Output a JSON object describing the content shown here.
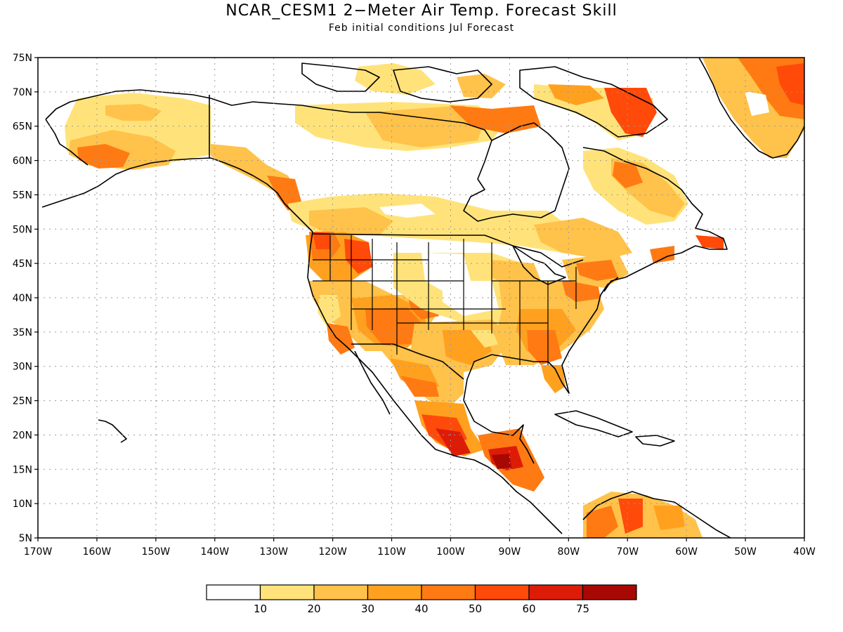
{
  "title": "NCAR_CESM1 2−Meter Air Temp. Forecast Skill",
  "subtitle": "Feb initial conditions  Jul Forecast",
  "map": {
    "lon_range": [
      -170,
      -40
    ],
    "lat_range": [
      5,
      75
    ],
    "grid": "dotted",
    "lat_ticks": [
      "5N",
      "10N",
      "15N",
      "20N",
      "25N",
      "30N",
      "35N",
      "40N",
      "45N",
      "50N",
      "55N",
      "60N",
      "65N",
      "70N",
      "75N"
    ],
    "lon_ticks": [
      "170W",
      "160W",
      "150W",
      "140W",
      "130W",
      "120W",
      "110W",
      "100W",
      "90W",
      "80W",
      "70W",
      "60W",
      "50W",
      "40W"
    ]
  },
  "legend": {
    "colors": [
      "#ffffff",
      "#ffe37a",
      "#ffc24a",
      "#ffa11e",
      "#ff7a12",
      "#ff4a0a",
      "#dd1c08",
      "#a80804"
    ],
    "labels": [
      "10",
      "20",
      "30",
      "40",
      "50",
      "60",
      "75"
    ]
  },
  "chart_data": {
    "type": "heatmap",
    "title": "NCAR_CESM1 2−Meter Air Temp. Forecast Skill",
    "subtitle": "Feb initial conditions  Jul Forecast",
    "xlabel": "",
    "ylabel": "",
    "xlim": [
      -170,
      -40
    ],
    "ylim": [
      5,
      75
    ],
    "levels": [
      10,
      20,
      30,
      40,
      50,
      60,
      75
    ],
    "regions": [
      {
        "lon": [
          -163,
          -145
        ],
        "lat": [
          60,
          68
        ],
        "level": 20
      },
      {
        "lon": [
          -162,
          -152
        ],
        "lat": [
          60,
          63
        ],
        "level": 50
      },
      {
        "lon": [
          -141,
          -130
        ],
        "lat": [
          60,
          64
        ],
        "level": 20
      },
      {
        "lon": [
          -113,
          -98
        ],
        "lat": [
          60,
          70
        ],
        "level": 10
      },
      {
        "lon": [
          -98,
          -82
        ],
        "lat": [
          63,
          70
        ],
        "level": 30
      },
      {
        "lon": [
          -86,
          -75
        ],
        "lat": [
          66,
          73
        ],
        "level": 50
      },
      {
        "lon": [
          -55,
          -43
        ],
        "lat": [
          65,
          74
        ],
        "level": 50
      },
      {
        "lon": [
          -76,
          -66
        ],
        "lat": [
          53,
          61
        ],
        "level": 30
      },
      {
        "lon": [
          -126,
          -118
        ],
        "lat": [
          47,
          52
        ],
        "level": 60
      },
      {
        "lon": [
          -122,
          -115
        ],
        "lat": [
          40,
          48
        ],
        "level": 50
      },
      {
        "lon": [
          -115,
          -105
        ],
        "lat": [
          34,
          40
        ],
        "level": 50
      },
      {
        "lon": [
          -100,
          -88
        ],
        "lat": [
          36,
          42
        ],
        "level": 10
      },
      {
        "lon": [
          -90,
          -80
        ],
        "lat": [
          30,
          40
        ],
        "level": 40
      },
      {
        "lon": [
          -106,
          -96
        ],
        "lat": [
          16,
          24
        ],
        "level": 60
      },
      {
        "lon": [
          -92,
          -88
        ],
        "lat": [
          14,
          18
        ],
        "level": 75
      },
      {
        "lon": [
          -78,
          -66
        ],
        "lat": [
          5,
          11
        ],
        "level": 50
      }
    ]
  }
}
